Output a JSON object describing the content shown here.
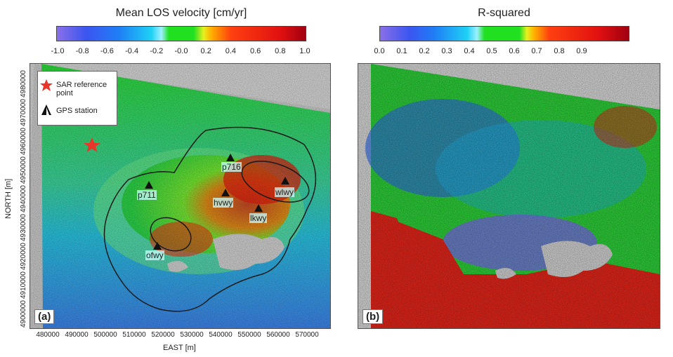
{
  "left_panel": {
    "title": "Mean LOS velocity [cm/yr]",
    "colorbar_ticks": [
      "-1.0",
      "-0.8",
      "-0.6",
      "-0.4",
      "-0.2",
      "-0.0",
      "0.2",
      "0.4",
      "0.6",
      "0.8",
      "1.0"
    ],
    "panel_label": "(a)",
    "legend": {
      "star_label": "SAR reference point",
      "gps_label": "GPS station"
    },
    "stations": [
      "p716",
      "p711",
      "hvwy",
      "wlwy",
      "lkwy",
      "ofwy"
    ]
  },
  "right_panel": {
    "title": "R-squared",
    "colorbar_ticks": [
      "0.0",
      "0.1",
      "0.2",
      "0.3",
      "0.4",
      "0.5",
      "0.6",
      "0.7",
      "0.8",
      "0.9"
    ],
    "panel_label": "(b)"
  },
  "axes": {
    "xlabel": "EAST [m]",
    "ylabel": "NORTH [m]",
    "xticks": [
      "480000",
      "490000",
      "500000",
      "510000",
      "520000",
      "530000",
      "540000",
      "550000",
      "560000",
      "570000"
    ],
    "yticks": [
      "4900000",
      "4910000",
      "4920000",
      "4930000",
      "4940000",
      "4950000",
      "4960000",
      "4970000",
      "4980000"
    ]
  },
  "colors": {
    "star": "#e8362a",
    "outline": "#1a1a1a",
    "lake": "#d6d6d6"
  }
}
